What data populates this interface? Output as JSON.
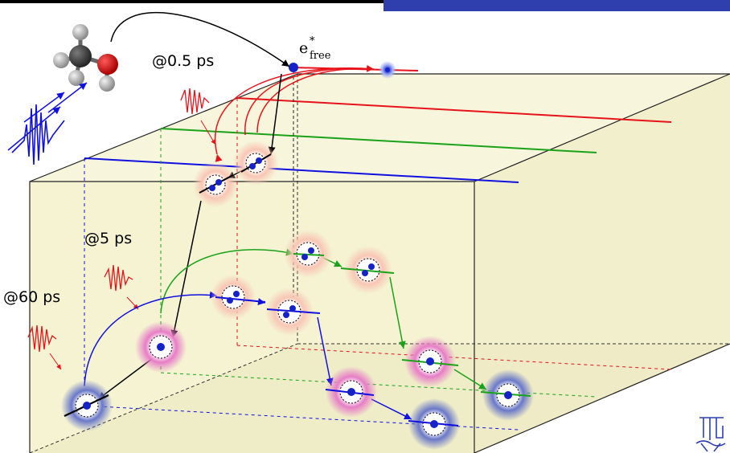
{
  "labels": {
    "t_05": "@0.5 ps",
    "t_5": "@5 ps",
    "t_60": "@60 ps",
    "efree_base": "e",
    "efree_sup": "*",
    "efree_sub": "free"
  },
  "colors": {
    "box_face": "#f5f3d2",
    "red": "#e8121a",
    "green": "#1aa318",
    "blue": "#1010e0",
    "electron": "#1522c8",
    "title_bar": "#2f3fae"
  },
  "icons": [
    "methanol-molecule-icon",
    "laser-pulse-icon",
    "tu-logo-icon"
  ]
}
